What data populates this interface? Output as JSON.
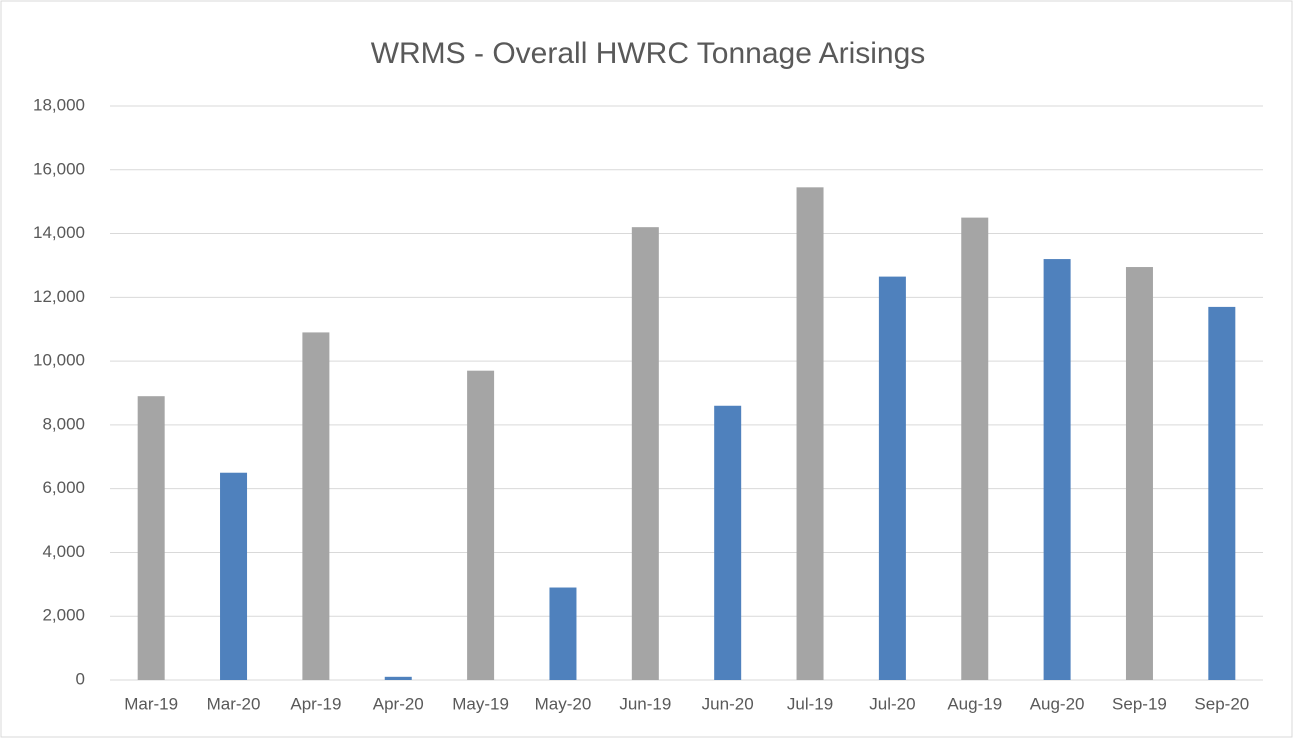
{
  "chart_data": {
    "type": "bar",
    "title": "WRMS - Overall HWRC Tonnage Arisings",
    "categories": [
      "Mar-19",
      "Mar-20",
      "Apr-19",
      "Apr-20",
      "May-19",
      "May-20",
      "Jun-19",
      "Jun-20",
      "Jul-19",
      "Jul-20",
      "Aug-19",
      "Aug-20",
      "Sep-19",
      "Sep-20"
    ],
    "values": [
      8900,
      6500,
      10900,
      100,
      9700,
      2900,
      14200,
      8600,
      15450,
      12650,
      14500,
      13200,
      12950,
      11700
    ],
    "colors": [
      "#a5a5a5",
      "#4f81bd",
      "#a5a5a5",
      "#4f81bd",
      "#a5a5a5",
      "#4f81bd",
      "#a5a5a5",
      "#4f81bd",
      "#a5a5a5",
      "#4f81bd",
      "#a5a5a5",
      "#4f81bd",
      "#a5a5a5",
      "#4f81bd"
    ],
    "ylim": [
      0,
      18000
    ],
    "yticks": [
      0,
      {
        "value": 2000,
        "label": "2,000"
      },
      {
        "value": 4000,
        "label": "4,000"
      },
      {
        "value": 6000,
        "label": "6,000"
      },
      {
        "value": 8000,
        "label": "8,000"
      },
      {
        "value": 10000,
        "label": "10,000"
      },
      {
        "value": 12000,
        "label": "12,000"
      },
      {
        "value": 14000,
        "label": "14,000"
      },
      {
        "value": 16000,
        "label": "16,000"
      },
      {
        "value": 18000,
        "label": "18,000"
      }
    ],
    "grid": true
  }
}
